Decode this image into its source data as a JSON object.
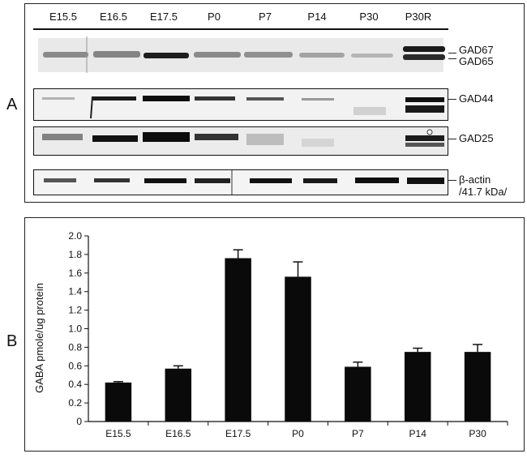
{
  "panels": {
    "a": {
      "letter": "A",
      "lanes": [
        "E15.5",
        "E16.5",
        "E17.5",
        "P0",
        "P7",
        "P14",
        "P30",
        "P30R"
      ],
      "blots": [
        {
          "labels": [
            "GAD67",
            "GAD65"
          ]
        },
        {
          "labels": [
            "GAD44"
          ]
        },
        {
          "labels": [
            "GAD25"
          ]
        },
        {
          "labels": [
            "β-actin",
            "/41.7 kDa/"
          ]
        }
      ]
    },
    "b": {
      "letter": "B"
    }
  },
  "chart_data": {
    "type": "bar",
    "categories": [
      "E15.5",
      "E16.5",
      "E17.5",
      "P0",
      "P7",
      "P14",
      "P30"
    ],
    "values": [
      0.42,
      0.57,
      1.76,
      1.56,
      0.59,
      0.75,
      0.75
    ],
    "errors": [
      0.01,
      0.03,
      0.09,
      0.16,
      0.05,
      0.04,
      0.08
    ],
    "ylabel": "GABA pmole/ug protein",
    "xlabel": "",
    "ylim": [
      0,
      2.0
    ],
    "yticks": [
      "0",
      "0.2",
      "0.4",
      "0.6",
      "0.8",
      "1.0",
      "1.2",
      "1.4",
      "1.6",
      "1.8",
      "2.0"
    ],
    "bar_color": "#0a0a0a",
    "grid": false
  }
}
